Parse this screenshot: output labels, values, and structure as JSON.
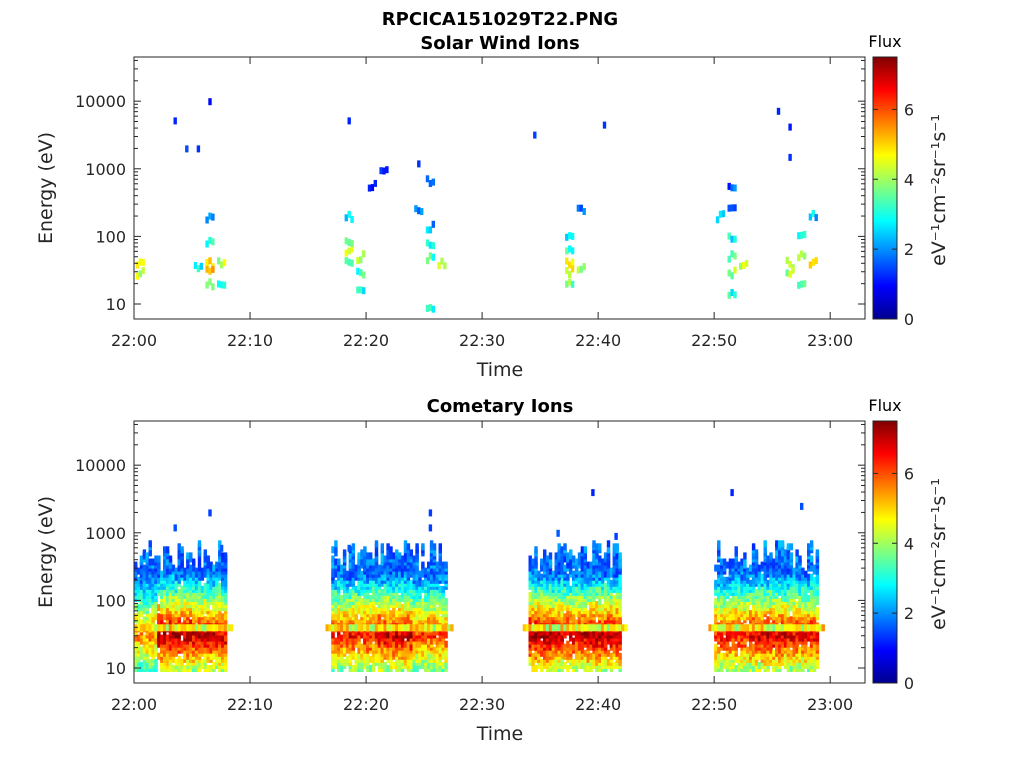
{
  "figure": {
    "filename": "RPCICA151029T22.PNG"
  },
  "colorbar": {
    "title": "Flux",
    "label": "eV⁻¹cm⁻²sr⁻¹s⁻¹",
    "ticks": [
      "0",
      "2",
      "4",
      "6"
    ]
  },
  "chart_data": [
    {
      "type": "heatmap",
      "title": "Solar Wind Ions",
      "xlabel": "Time",
      "ylabel": "Energy (eV)",
      "xticks": [
        "22:00",
        "22:10",
        "22:20",
        "22:30",
        "22:40",
        "22:50",
        "23:00"
      ],
      "yticks": [
        "10",
        "100",
        "1000",
        "10000"
      ],
      "ylim": [
        6,
        45000
      ],
      "yscale": "log",
      "clim": [
        0,
        7.5
      ],
      "points": [
        {
          "t": "22:00",
          "e": 30,
          "v": 4.2
        },
        {
          "t": "22:00",
          "e": 40,
          "v": 4.5
        },
        {
          "t": "22:03",
          "e": 5200,
          "v": 1.2
        },
        {
          "t": "22:04",
          "e": 2000,
          "v": 1.5
        },
        {
          "t": "22:05",
          "e": 2000,
          "v": 1.3
        },
        {
          "t": "22:06",
          "e": 10000,
          "v": 1.0
        },
        {
          "t": "22:05",
          "e": 35,
          "v": 3.0
        },
        {
          "t": "22:06",
          "e": 40,
          "v": 4.8
        },
        {
          "t": "22:06",
          "e": 30,
          "v": 5.0
        },
        {
          "t": "22:06",
          "e": 20,
          "v": 4.0
        },
        {
          "t": "22:06",
          "e": 80,
          "v": 3.0
        },
        {
          "t": "22:06",
          "e": 200,
          "v": 2.2
        },
        {
          "t": "22:07",
          "e": 40,
          "v": 4.2
        },
        {
          "t": "22:07",
          "e": 20,
          "v": 3.2
        },
        {
          "t": "22:18",
          "e": 5200,
          "v": 1.2
        },
        {
          "t": "22:18",
          "e": 60,
          "v": 4.6
        },
        {
          "t": "22:18",
          "e": 80,
          "v": 3.5
        },
        {
          "t": "22:18",
          "e": 40,
          "v": 3.6
        },
        {
          "t": "22:18",
          "e": 200,
          "v": 2.4
        },
        {
          "t": "22:19",
          "e": 50,
          "v": 4.4
        },
        {
          "t": "22:19",
          "e": 30,
          "v": 3.2
        },
        {
          "t": "22:19",
          "e": 15,
          "v": 2.8
        },
        {
          "t": "22:20",
          "e": 600,
          "v": 1.5
        },
        {
          "t": "22:21",
          "e": 900,
          "v": 1.4
        },
        {
          "t": "22:24",
          "e": 270,
          "v": 1.6
        },
        {
          "t": "22:24",
          "e": 1200,
          "v": 1.3
        },
        {
          "t": "22:25",
          "e": 700,
          "v": 1.2
        },
        {
          "t": "22:25",
          "e": 80,
          "v": 3.0
        },
        {
          "t": "22:25",
          "e": 50,
          "v": 3.4
        },
        {
          "t": "22:25",
          "e": 140,
          "v": 2.2
        },
        {
          "t": "22:25",
          "e": 8,
          "v": 2.8
        },
        {
          "t": "22:26",
          "e": 40,
          "v": 4.2
        },
        {
          "t": "22:34",
          "e": 3200,
          "v": 1.4
        },
        {
          "t": "22:37",
          "e": 40,
          "v": 4.8
        },
        {
          "t": "22:37",
          "e": 30,
          "v": 4.4
        },
        {
          "t": "22:37",
          "e": 60,
          "v": 3.2
        },
        {
          "t": "22:37",
          "e": 20,
          "v": 3.6
        },
        {
          "t": "22:37",
          "e": 100,
          "v": 2.8
        },
        {
          "t": "22:38",
          "e": 250,
          "v": 2.0
        },
        {
          "t": "22:38",
          "e": 35,
          "v": 4.0
        },
        {
          "t": "22:40",
          "e": 4500,
          "v": 1.3
        },
        {
          "t": "22:50",
          "e": 200,
          "v": 2.2
        },
        {
          "t": "22:51",
          "e": 500,
          "v": 1.6
        },
        {
          "t": "22:51",
          "e": 300,
          "v": 2.0
        },
        {
          "t": "22:51",
          "e": 100,
          "v": 2.8
        },
        {
          "t": "22:51",
          "e": 50,
          "v": 3.4
        },
        {
          "t": "22:51",
          "e": 30,
          "v": 3.8
        },
        {
          "t": "22:51",
          "e": 15,
          "v": 3.0
        },
        {
          "t": "22:52",
          "e": 40,
          "v": 4.4
        },
        {
          "t": "22:55",
          "e": 7200,
          "v": 1.2
        },
        {
          "t": "22:56",
          "e": 1500,
          "v": 1.3
        },
        {
          "t": "22:56",
          "e": 4200,
          "v": 1.1
        },
        {
          "t": "22:56",
          "e": 40,
          "v": 4.6
        },
        {
          "t": "22:56",
          "e": 30,
          "v": 4.0
        },
        {
          "t": "22:57",
          "e": 50,
          "v": 3.8
        },
        {
          "t": "22:57",
          "e": 20,
          "v": 3.4
        },
        {
          "t": "22:57",
          "e": 100,
          "v": 2.6
        },
        {
          "t": "22:58",
          "e": 200,
          "v": 2.4
        },
        {
          "t": "22:58",
          "e": 40,
          "v": 4.6
        }
      ]
    },
    {
      "type": "heatmap",
      "title": "Cometary Ions",
      "xlabel": "Time",
      "ylabel": "Energy (eV)",
      "xticks": [
        "22:00",
        "22:10",
        "22:20",
        "22:30",
        "22:40",
        "22:50",
        "23:00"
      ],
      "yticks": [
        "10",
        "100",
        "1000",
        "10000"
      ],
      "ylim": [
        6,
        45000
      ],
      "yscale": "log",
      "clim": [
        0,
        7.5
      ],
      "bursts": [
        {
          "t0": "22:00",
          "t1": "22:01",
          "peak": 5.6
        },
        {
          "t0": "22:02",
          "t1": "22:04",
          "peak": 7.2
        },
        {
          "t0": "22:05",
          "t1": "22:07",
          "peak": 7.0
        },
        {
          "t0": "22:17",
          "t1": "22:20",
          "peak": 6.6
        },
        {
          "t0": "22:21",
          "t1": "22:23",
          "peak": 7.0
        },
        {
          "t0": "22:24",
          "t1": "22:26",
          "peak": 6.2
        },
        {
          "t0": "22:34",
          "t1": "22:36",
          "peak": 7.4
        },
        {
          "t0": "22:36",
          "t1": "22:38",
          "peak": 7.0
        },
        {
          "t0": "22:39",
          "t1": "22:41",
          "peak": 7.2
        },
        {
          "t0": "22:50",
          "t1": "22:52",
          "peak": 6.6
        },
        {
          "t0": "22:53",
          "t1": "22:55",
          "peak": 7.0
        },
        {
          "t0": "22:56",
          "t1": "22:58",
          "peak": 6.8
        }
      ],
      "sparse_points": [
        {
          "t": "22:03",
          "e": 1200,
          "v": 1.5
        },
        {
          "t": "22:06",
          "e": 2000,
          "v": 1.4
        },
        {
          "t": "22:07",
          "e": 600,
          "v": 1.6
        },
        {
          "t": "22:18",
          "e": 600,
          "v": 1.6
        },
        {
          "t": "22:25",
          "e": 2000,
          "v": 1.4
        },
        {
          "t": "22:25",
          "e": 1200,
          "v": 1.4
        },
        {
          "t": "22:36",
          "e": 1000,
          "v": 1.6
        },
        {
          "t": "22:39",
          "e": 4000,
          "v": 1.2
        },
        {
          "t": "22:41",
          "e": 900,
          "v": 1.4
        },
        {
          "t": "22:51",
          "e": 4000,
          "v": 1.2
        },
        {
          "t": "22:57",
          "e": 2500,
          "v": 1.5
        }
      ]
    }
  ]
}
